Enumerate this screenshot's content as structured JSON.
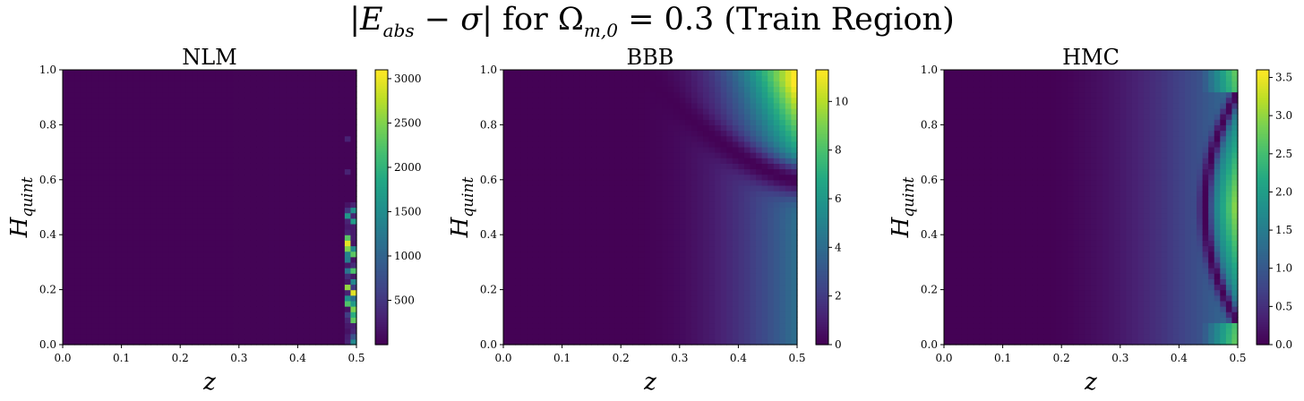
{
  "figure": {
    "suptitle_pre": "|",
    "suptitle_E": "E",
    "suptitle_E_sub": "abs",
    "suptitle_mid": " − ",
    "suptitle_sigma": "σ",
    "suptitle_post1": "| for Ω",
    "suptitle_Omega_sub": "m,0",
    "suptitle_post2": " = 0.3 (Train Region)"
  },
  "chart_data": [
    {
      "type": "heatmap",
      "title": "NLM",
      "xlabel": "z",
      "ylabel_main": "H",
      "ylabel_sub": "quint",
      "xlim": [
        0.0,
        0.5
      ],
      "ylim": [
        0.0,
        1.0
      ],
      "xticks": [
        "0.0",
        "0.1",
        "0.2",
        "0.3",
        "0.4",
        "0.5"
      ],
      "yticks": [
        "0.0",
        "0.2",
        "0.4",
        "0.6",
        "0.8",
        "1.0"
      ],
      "colorbar_ticks": [
        "500",
        "1000",
        "1500",
        "2000",
        "2500",
        "3000"
      ],
      "colorbar_tick_values": [
        500,
        1000,
        1500,
        2000,
        2500,
        3000
      ],
      "vmin": 0,
      "vmax": 3100,
      "colormap": "viridis",
      "pattern": "near-zero everywhere; sparse high-error spikes in the last columns near z=0.5 for H below 0.5"
    },
    {
      "type": "heatmap",
      "title": "BBB",
      "xlabel": "z",
      "ylabel_main": "H",
      "ylabel_sub": "quint",
      "xlim": [
        0.0,
        0.5
      ],
      "ylim": [
        0.0,
        1.0
      ],
      "xticks": [
        "0.0",
        "0.1",
        "0.2",
        "0.3",
        "0.4",
        "0.5"
      ],
      "yticks": [
        "0.0",
        "0.2",
        "0.4",
        "0.6",
        "0.8",
        "1.0"
      ],
      "colorbar_ticks": [
        "0",
        "2",
        "4",
        "6",
        "8",
        "10"
      ],
      "colorbar_tick_values": [
        0,
        2,
        4,
        6,
        8,
        10
      ],
      "vmin": 0,
      "vmax": 11.3,
      "colormap": "viridis",
      "pattern": "error grows with z, peaking near z=0.5, H=1.0; dark arc-shaped valley near H≈0.6"
    },
    {
      "type": "heatmap",
      "title": "HMC",
      "xlabel": "z",
      "ylabel_main": "H",
      "ylabel_sub": "quint",
      "xlim": [
        0.0,
        0.5
      ],
      "ylim": [
        0.0,
        1.0
      ],
      "xticks": [
        "0.0",
        "0.1",
        "0.2",
        "0.3",
        "0.4",
        "0.5"
      ],
      "yticks": [
        "0.0",
        "0.2",
        "0.4",
        "0.6",
        "0.8",
        "1.0"
      ],
      "colorbar_ticks": [
        "0.0",
        "0.5",
        "1.0",
        "1.5",
        "2.0",
        "2.5",
        "3.0",
        "3.5"
      ],
      "colorbar_tick_values": [
        0.0,
        0.5,
        1.0,
        1.5,
        2.0,
        2.5,
        3.0,
        3.5
      ],
      "vmin": 0,
      "vmax": 3.6,
      "colormap": "viridis",
      "pattern": "error grows with z; crescent-shaped dark valley from H≈0.1 to H≈0.9 near z≈0.45; high values at z=0.5 corners"
    }
  ]
}
